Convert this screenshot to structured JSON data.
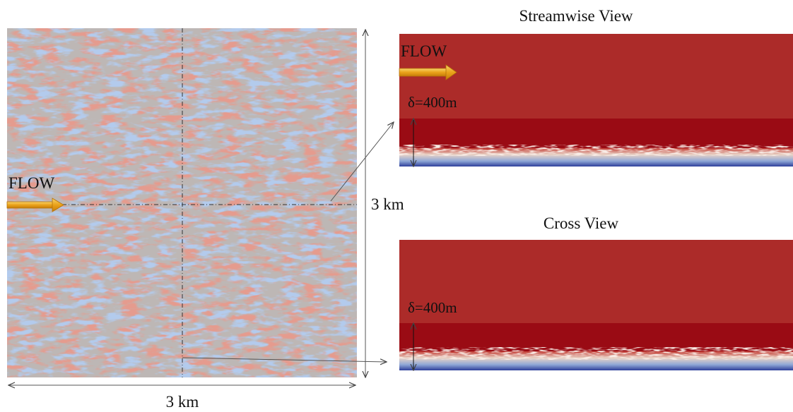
{
  "left_panel": {
    "flow_label": "FLOW",
    "height_label": "3 km",
    "width_label": "3 km"
  },
  "streamwise_view": {
    "title": "Streamwise View",
    "flow_label": "FLOW",
    "thickness_label": "δ=400m"
  },
  "cross_view": {
    "title": "Cross View",
    "thickness_label": "δ=400m"
  }
}
